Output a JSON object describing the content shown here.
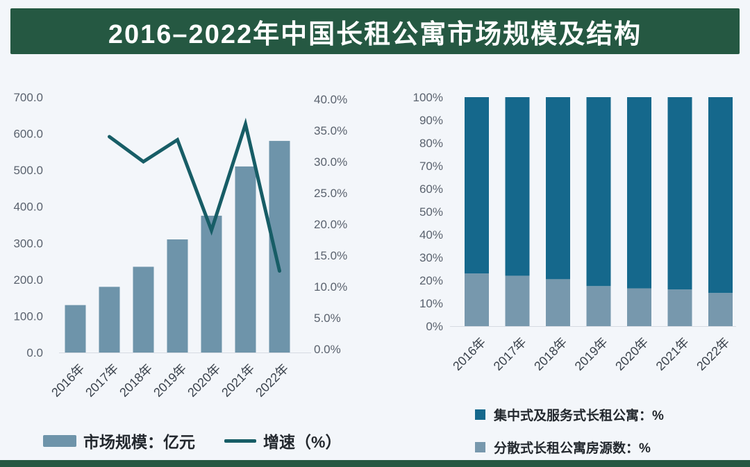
{
  "title": "2016–2022年中国长租公寓市场规模及结构",
  "colors": {
    "background": "#f3f6fa",
    "banner_green": "#255842",
    "bar_blue": "#6e94aa",
    "line_teal": "#175d66",
    "dark_segment": "#15688c",
    "light_segment": "#7798ad",
    "axis_text": "#5a626e",
    "xlabel_text": "#3c444e",
    "legend_text": "#23282e",
    "baseline_gray": "#d6dbe2"
  },
  "chart_data": [
    {
      "id": "market-size-combo",
      "type": "bar",
      "subtype": "combo-bar-line",
      "categories": [
        "2016年",
        "2017年",
        "2018年",
        "2019年",
        "2020年",
        "2021年",
        "2022年"
      ],
      "series": [
        {
          "name": "市场规模：亿元",
          "type": "bar",
          "axis": "left",
          "values": [
            130,
            180,
            235,
            310,
            375,
            510,
            580
          ]
        },
        {
          "name": "增速（%）",
          "type": "line",
          "axis": "right",
          "values": [
            null,
            34,
            30,
            33.5,
            19,
            36,
            12.5
          ]
        }
      ],
      "y_left": {
        "min": 0,
        "max": 700,
        "tick_labels": [
          "700.0",
          "600.0",
          "500.0",
          "400.0",
          "300.0",
          "200.0",
          "100.0",
          "0.0"
        ]
      },
      "y_right": {
        "min": 0,
        "max": 40,
        "tick_labels": [
          "40.0%",
          "35.0%",
          "30.0%",
          "25.0%",
          "20.0%",
          "15.0%",
          "10.0%",
          "5.0%",
          "0.0%"
        ]
      },
      "grid": "off",
      "legend_position": "bottom"
    },
    {
      "id": "structure-stacked",
      "type": "bar",
      "subtype": "stacked-100",
      "categories": [
        "2016年",
        "2017年",
        "2018年",
        "2019年",
        "2020年",
        "2021年",
        "2022年"
      ],
      "series": [
        {
          "name": "集中式及服务式长租公寓：%",
          "position": "top",
          "values": [
            77,
            78,
            79.5,
            82.5,
            83.5,
            84,
            85.5
          ]
        },
        {
          "name": "分散式长租公寓房源数：%",
          "position": "bottom",
          "values": [
            23,
            22,
            20.5,
            17.5,
            16.5,
            16,
            14.5
          ]
        }
      ],
      "y": {
        "min": 0,
        "max": 100,
        "tick_labels": [
          "100%",
          "90%",
          "80%",
          "70%",
          "60%",
          "50%",
          "40%",
          "30%",
          "20%",
          "10%",
          "0%"
        ]
      },
      "grid": "off",
      "legend_position": "bottom"
    }
  ]
}
